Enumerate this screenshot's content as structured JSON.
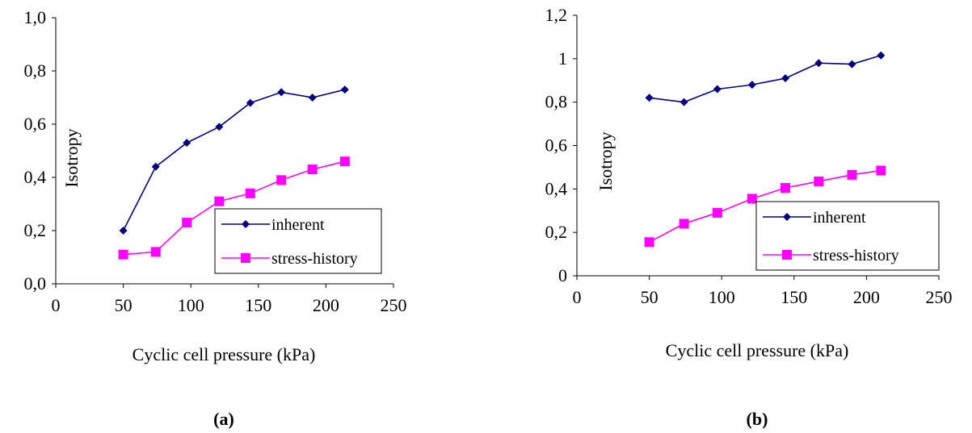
{
  "chart_data": [
    {
      "type": "line",
      "panel_label": "(a)",
      "xlabel": "Cyclic cell pressure (kPa)",
      "ylabel": "Isotropy",
      "xlim": [
        0,
        250
      ],
      "ylim": [
        0,
        1.0
      ],
      "xticks": [
        "0",
        "50",
        "100",
        "150",
        "200",
        "250"
      ],
      "yticks": [
        "0,0",
        "0,2",
        "0,4",
        "0,6",
        "0,8",
        "1,0"
      ],
      "grid": false,
      "legend_position": "bottom-right",
      "series": [
        {
          "name": "inherent",
          "color": "#000080",
          "marker": "diamond",
          "x": [
            50,
            74,
            97,
            121,
            144,
            167,
            190,
            214
          ],
          "y": [
            0.2,
            0.44,
            0.53,
            0.59,
            0.68,
            0.72,
            0.7,
            0.73
          ]
        },
        {
          "name": "stress-history",
          "color": "#FF00FF",
          "marker": "square",
          "x": [
            50,
            74,
            97,
            121,
            144,
            167,
            190,
            214
          ],
          "y": [
            0.11,
            0.12,
            0.23,
            0.31,
            0.34,
            0.39,
            0.43,
            0.46
          ]
        }
      ]
    },
    {
      "type": "line",
      "panel_label": "(b)",
      "xlabel": "Cyclic cell pressure (kPa)",
      "ylabel": "Isotropy",
      "xlim": [
        0,
        250
      ],
      "ylim": [
        0,
        1.2
      ],
      "xticks": [
        "0",
        "50",
        "100",
        "150",
        "200",
        "250"
      ],
      "yticks": [
        "0",
        "0,2",
        "0,4",
        "0,6",
        "0,8",
        "1",
        "1,2"
      ],
      "grid": false,
      "legend_position": "bottom-right",
      "series": [
        {
          "name": "inherent",
          "color": "#000080",
          "marker": "diamond",
          "x": [
            50,
            74,
            97,
            121,
            144,
            167,
            190,
            210
          ],
          "y": [
            0.82,
            0.8,
            0.86,
            0.88,
            0.91,
            0.98,
            0.975,
            1.015
          ]
        },
        {
          "name": "stress-history",
          "color": "#FF00FF",
          "marker": "square",
          "x": [
            50,
            74,
            97,
            121,
            144,
            167,
            190,
            210
          ],
          "y": [
            0.155,
            0.24,
            0.29,
            0.355,
            0.405,
            0.435,
            0.465,
            0.485
          ]
        }
      ]
    }
  ]
}
